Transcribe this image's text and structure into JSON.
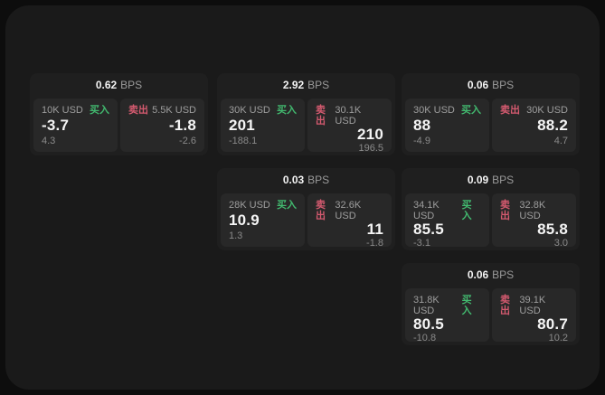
{
  "labels": {
    "bps": "BPS",
    "buy": "买入",
    "sell": "卖出"
  },
  "colors": {
    "buy_green": "#42b96f",
    "sell_red": "#d45a6f",
    "panel_bg": "#1a1a1a",
    "card_bg": "#1f1f1f",
    "cell_bg": "#282828"
  },
  "cards": [
    {
      "bps": "0.62",
      "buy": {
        "amount": "10K USD",
        "value": "-3.7",
        "sub": "4.3"
      },
      "sell": {
        "amount": "5.5K USD",
        "value": "-1.8",
        "sub": "-2.6"
      }
    },
    {
      "bps": "2.92",
      "buy": {
        "amount": "30K USD",
        "value": "201",
        "sub": "-188.1"
      },
      "sell": {
        "amount": "30.1K USD",
        "value": "210",
        "sub": "196.5"
      }
    },
    {
      "bps": "0.03",
      "buy": {
        "amount": "28K USD",
        "value": "10.9",
        "sub": "1.3"
      },
      "sell": {
        "amount": "32.6K USD",
        "value": "11",
        "sub": "-1.8"
      }
    },
    {
      "bps": "0.06",
      "buy": {
        "amount": "30K USD",
        "value": "88",
        "sub": "-4.9"
      },
      "sell": {
        "amount": "30K USD",
        "value": "88.2",
        "sub": "4.7"
      }
    },
    {
      "bps": "0.09",
      "buy": {
        "amount": "34.1K USD",
        "value": "85.5",
        "sub": "-3.1"
      },
      "sell": {
        "amount": "32.8K USD",
        "value": "85.8",
        "sub": "3.0"
      }
    },
    {
      "bps": "0.06",
      "buy": {
        "amount": "31.8K USD",
        "value": "80.5",
        "sub": "-10.8"
      },
      "sell": {
        "amount": "39.1K USD",
        "value": "80.7",
        "sub": "10.2"
      }
    }
  ]
}
